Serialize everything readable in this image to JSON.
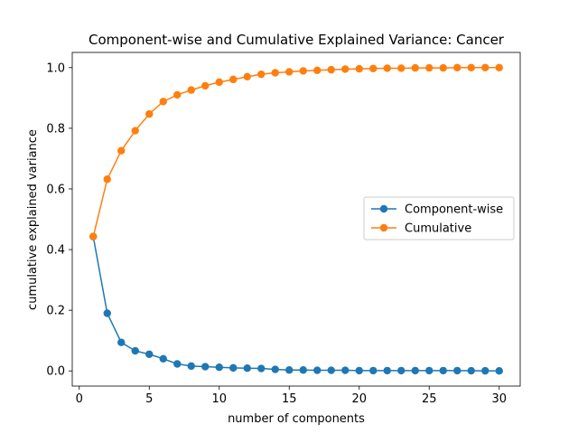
{
  "chart_data": {
    "type": "line",
    "title": "Component-wise and Cumulative Explained Variance: Cancer",
    "xlabel": "number of components",
    "ylabel": "cumulative explained variance",
    "xlim": [
      -0.5,
      31.5
    ],
    "ylim": [
      -0.05,
      1.05
    ],
    "xticks": [
      0,
      5,
      10,
      15,
      20,
      25,
      30
    ],
    "yticks": [
      0.0,
      0.2,
      0.4,
      0.6,
      0.8,
      1.0
    ],
    "xtick_labels": [
      "0",
      "5",
      "10",
      "15",
      "20",
      "25",
      "30"
    ],
    "ytick_labels": [
      "0.0",
      "0.2",
      "0.4",
      "0.6",
      "0.8",
      "1.0"
    ],
    "grid": false,
    "legend_position": "center-right",
    "x": [
      1,
      2,
      3,
      4,
      5,
      6,
      7,
      8,
      9,
      10,
      11,
      12,
      13,
      14,
      15,
      16,
      17,
      18,
      19,
      20,
      21,
      22,
      23,
      24,
      25,
      26,
      27,
      28,
      29,
      30
    ],
    "series": [
      {
        "name": "Component-wise",
        "color": "#1f77b4",
        "marker": "circle",
        "values": [
          0.443,
          0.19,
          0.094,
          0.066,
          0.055,
          0.04,
          0.023,
          0.016,
          0.014,
          0.012,
          0.01,
          0.009,
          0.008,
          0.005,
          0.003,
          0.003,
          0.002,
          0.002,
          0.002,
          0.001,
          0.001,
          0.001,
          0.001,
          0.001,
          0.001,
          0.001,
          0.001,
          0.0005,
          0.0003,
          0.0001
        ]
      },
      {
        "name": "Cumulative",
        "color": "#ff7f0e",
        "marker": "circle",
        "values": [
          0.443,
          0.632,
          0.726,
          0.792,
          0.847,
          0.888,
          0.91,
          0.926,
          0.94,
          0.952,
          0.961,
          0.97,
          0.978,
          0.983,
          0.986,
          0.989,
          0.991,
          0.993,
          0.995,
          0.996,
          0.997,
          0.998,
          0.998,
          0.999,
          0.999,
          0.999,
          1.0,
          1.0,
          1.0,
          1.0
        ]
      }
    ]
  }
}
